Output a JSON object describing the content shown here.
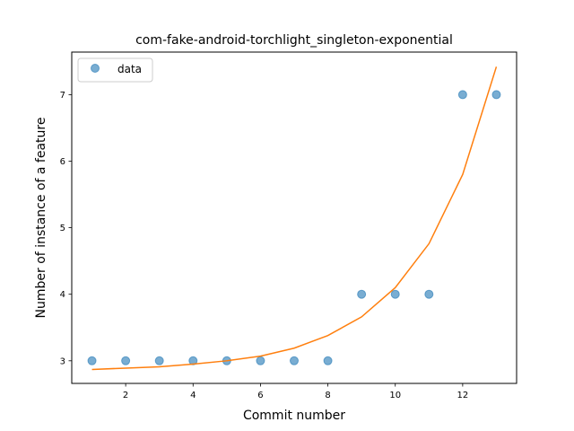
{
  "chart_data": {
    "type": "scatter",
    "title": "com-fake-android-torchlight_singleton-exponential",
    "xlabel": "Commit number",
    "ylabel": "Number of instance of a feature",
    "xlim": [
      0.4,
      13.6
    ],
    "ylim": [
      2.66,
      7.64
    ],
    "xticks": [
      2,
      4,
      6,
      8,
      10,
      12
    ],
    "yticks": [
      3,
      4,
      5,
      6,
      7
    ],
    "grid": false,
    "legend_position": "top-left",
    "series": [
      {
        "name": "data",
        "kind": "scatter",
        "color": "#1f77b4",
        "x": [
          1,
          2,
          3,
          4,
          5,
          6,
          7,
          8,
          9,
          10,
          11,
          12,
          13
        ],
        "y": [
          3,
          3,
          3,
          3,
          3,
          3,
          3,
          3,
          4,
          4,
          4,
          7,
          7
        ]
      },
      {
        "kind": "line",
        "color": "#ff7f0e",
        "x": [
          1,
          2,
          3,
          4,
          5,
          6,
          7,
          8,
          9,
          10,
          11,
          12,
          13
        ],
        "y": [
          2.87,
          2.89,
          2.91,
          2.95,
          3.0,
          3.07,
          3.19,
          3.38,
          3.66,
          4.1,
          4.76,
          5.8,
          7.42
        ]
      }
    ]
  }
}
